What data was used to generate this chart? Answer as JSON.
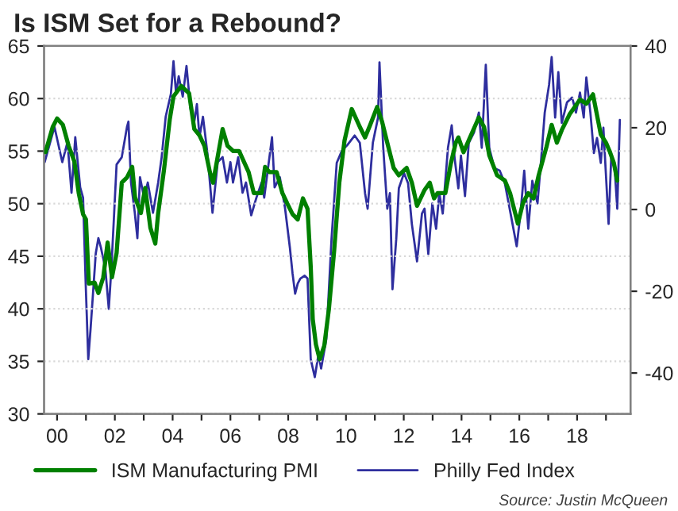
{
  "chart_data": {
    "type": "line",
    "title": "Is ISM Set for a Rebound?",
    "xlim": [
      1999.55,
      2019.85
    ],
    "xticks": [
      {
        "value": 2000,
        "label": "00"
      },
      {
        "value": 2001,
        "label": null
      },
      {
        "value": 2002,
        "label": "02"
      },
      {
        "value": 2003,
        "label": null
      },
      {
        "value": 2004,
        "label": "04"
      },
      {
        "value": 2005,
        "label": null
      },
      {
        "value": 2006,
        "label": "06"
      },
      {
        "value": 2007,
        "label": null
      },
      {
        "value": 2008,
        "label": "08"
      },
      {
        "value": 2009,
        "label": null
      },
      {
        "value": 2010,
        "label": "10"
      },
      {
        "value": 2011,
        "label": null
      },
      {
        "value": 2012,
        "label": "12"
      },
      {
        "value": 2013,
        "label": null
      },
      {
        "value": 2014,
        "label": "14"
      },
      {
        "value": 2015,
        "label": null
      },
      {
        "value": 2016,
        "label": "16"
      },
      {
        "value": 2017,
        "label": null
      },
      {
        "value": 2018,
        "label": "18"
      },
      {
        "value": 2019,
        "label": null
      }
    ],
    "ylim": [
      30,
      65
    ],
    "yticks": [
      30,
      35,
      40,
      45,
      50,
      55,
      60,
      65
    ],
    "y2lim": [
      -50,
      40
    ],
    "y2ticks": [
      -40,
      -20,
      0,
      20,
      40
    ],
    "grid": "y",
    "legend": "bottom",
    "annotations": [
      "Source: Justin McQueen"
    ],
    "series": [
      {
        "name": "ISM Manufacturing PMI",
        "color": "#008000",
        "x": [
          1999.6,
          1999.85,
          2000.0,
          2000.2,
          2000.4,
          2000.6,
          2000.75,
          2000.9,
          2001.0,
          2001.1,
          2001.3,
          2001.43,
          2001.6,
          2001.75,
          2001.9,
          2002.06,
          2002.24,
          2002.42,
          2002.6,
          2002.7,
          2002.9,
          2003.05,
          2003.23,
          2003.4,
          2003.5,
          2003.7,
          2003.9,
          2004.03,
          2004.3,
          2004.57,
          2004.75,
          2004.93,
          2005.1,
          2005.29,
          2005.4,
          2005.73,
          2005.9,
          2006.1,
          2006.3,
          2006.63,
          2006.81,
          2007.08,
          2007.2,
          2007.35,
          2007.6,
          2007.8,
          2007.97,
          2008.15,
          2008.33,
          2008.51,
          2008.67,
          2008.78,
          2008.85,
          2008.96,
          2009.09,
          2009.25,
          2009.41,
          2009.59,
          2009.77,
          2009.95,
          2010.2,
          2010.48,
          2010.66,
          2010.84,
          2011.08,
          2011.25,
          2011.43,
          2011.65,
          2011.83,
          2012.1,
          2012.28,
          2012.46,
          2012.72,
          2012.9,
          2013.05,
          2013.17,
          2013.44,
          2013.62,
          2013.8,
          2013.89,
          2014.07,
          2014.34,
          2014.6,
          2014.78,
          2014.96,
          2015.23,
          2015.5,
          2015.68,
          2015.95,
          2016.13,
          2016.31,
          2016.49,
          2016.67,
          2016.94,
          2017.12,
          2017.3,
          2017.47,
          2017.74,
          2017.92,
          2018.1,
          2018.32,
          2018.55,
          2018.67,
          2018.82,
          2019.0,
          2019.14,
          2019.27,
          2019.39
        ],
        "values": [
          54.9,
          57.3,
          58.1,
          57.5,
          55.5,
          54,
          51,
          49,
          48.5,
          42.4,
          42.5,
          41.5,
          43,
          46.3,
          43,
          45.3,
          52,
          52.5,
          53.5,
          50.6,
          49.1,
          51.5,
          47.7,
          46.2,
          49.1,
          53.2,
          58,
          60.2,
          61.2,
          60.5,
          57.1,
          56.5,
          55.5,
          53,
          52,
          57.1,
          55.5,
          55,
          55,
          53,
          51,
          51,
          53.5,
          53,
          53,
          51,
          50,
          49,
          48.5,
          50.5,
          49.5,
          44,
          39,
          36.6,
          35.2,
          36.5,
          40,
          45.5,
          52,
          56,
          59,
          57.3,
          56.3,
          57.5,
          59.2,
          57.8,
          55.8,
          53.4,
          52.7,
          53.4,
          52,
          49.8,
          51.3,
          52,
          50.5,
          51,
          51,
          53.7,
          55.8,
          56.3,
          54.9,
          56.6,
          58.2,
          57.3,
          54.6,
          52.7,
          52.2,
          51,
          48.1,
          50.1,
          51,
          50.5,
          52.7,
          55.4,
          57.5,
          55.8,
          57,
          58.5,
          59.2,
          59.9,
          59.5,
          60.4,
          58.7,
          56.6,
          55.8,
          54.9,
          53.9,
          52.2
        ]
      },
      {
        "name": "Philly Fed Index",
        "color": "#2e2e9e",
        "axis": "y2",
        "x": [
          1999.57,
          1999.91,
          2000.18,
          2000.36,
          2000.5,
          2000.63,
          2000.8,
          2000.9,
          2000.99,
          2001.08,
          2001.16,
          2001.34,
          2001.43,
          2001.52,
          2001.67,
          2001.79,
          2001.88,
          2002.06,
          2002.24,
          2002.42,
          2002.47,
          2002.56,
          2002.69,
          2002.78,
          2002.87,
          2003.01,
          2003.14,
          2003.32,
          2003.5,
          2003.62,
          2003.76,
          2003.94,
          2004.03,
          2004.12,
          2004.21,
          2004.35,
          2004.48,
          2004.62,
          2004.75,
          2004.84,
          2004.93,
          2005.05,
          2005.2,
          2005.38,
          2005.56,
          2005.73,
          2005.88,
          2006.0,
          2006.09,
          2006.27,
          2006.42,
          2006.54,
          2006.72,
          2006.9,
          2007.08,
          2007.17,
          2007.44,
          2007.53,
          2007.71,
          2007.89,
          2008.06,
          2008.15,
          2008.24,
          2008.33,
          2008.42,
          2008.57,
          2008.67,
          2008.78,
          2008.92,
          2009.05,
          2009.14,
          2009.32,
          2009.5,
          2009.68,
          2009.86,
          2010.04,
          2010.3,
          2010.48,
          2010.66,
          2010.75,
          2010.93,
          2011.11,
          2011.16,
          2011.29,
          2011.43,
          2011.52,
          2011.61,
          2011.74,
          2011.83,
          2012.01,
          2012.15,
          2012.28,
          2012.46,
          2012.63,
          2012.72,
          2012.85,
          2012.99,
          2013.12,
          2013.23,
          2013.35,
          2013.53,
          2013.66,
          2013.76,
          2013.89,
          2013.98,
          2014.12,
          2014.25,
          2014.43,
          2014.6,
          2014.7,
          2014.84,
          2014.96,
          2015.14,
          2015.32,
          2015.5,
          2015.73,
          2015.91,
          2016.04,
          2016.17,
          2016.31,
          2016.45,
          2016.63,
          2016.76,
          2016.88,
          2017.03,
          2017.12,
          2017.24,
          2017.35,
          2017.47,
          2017.65,
          2017.83,
          2017.96,
          2018.1,
          2018.23,
          2018.32,
          2018.46,
          2018.58,
          2018.69,
          2018.82,
          2018.91,
          2019.0,
          2019.09,
          2019.18,
          2019.3,
          2019.39,
          2019.48
        ],
        "values": [
          11.6,
          20.2,
          11.6,
          16.5,
          4.1,
          17.7,
          5.4,
          2.9,
          -18,
          -36.6,
          -29.2,
          -10.7,
          -7,
          -9.4,
          -14.4,
          -24.3,
          -14.4,
          11,
          12.8,
          20.2,
          21.5,
          6.6,
          -0.8,
          -7,
          7.9,
          2.9,
          6.6,
          -0.8,
          6.6,
          12.8,
          22.7,
          28.3,
          36.3,
          28.3,
          32.6,
          27.6,
          35.1,
          24.6,
          21.5,
          25.8,
          17.7,
          22.7,
          14,
          -0.8,
          11.6,
          12.8,
          6.6,
          11.6,
          6.6,
          12.8,
          4.1,
          6.6,
          -1.4,
          2.9,
          6.6,
          2.9,
          17.7,
          5.4,
          7.9,
          0.4,
          -9.4,
          -15.6,
          -20.6,
          -18.1,
          -16.9,
          -16.2,
          -16.9,
          -36.6,
          -41,
          -35.4,
          -38.9,
          -31.7,
          -7.2,
          11.4,
          14.4,
          15.7,
          18.1,
          16.3,
          4,
          0.2,
          16.3,
          22.5,
          36,
          15.1,
          0.2,
          4,
          -19.5,
          -7.2,
          5.2,
          8.9,
          6.4,
          -3.5,
          -12.7,
          -1,
          0.2,
          -10.9,
          1.5,
          -4.7,
          4,
          -1,
          15.1,
          20.6,
          12.6,
          5.2,
          13.2,
          3.3,
          16.3,
          18.8,
          23.7,
          15.1,
          35.4,
          15.1,
          10.1,
          9.5,
          6.4,
          -2.2,
          -9,
          -1,
          9.5,
          -4.7,
          7,
          1.5,
          12.6,
          23.7,
          30.5,
          37.3,
          22.5,
          33.6,
          21.2,
          26.2,
          27.4,
          23.7,
          28.6,
          22.5,
          32.3,
          23.7,
          13.8,
          17.5,
          11.4,
          20,
          8.3,
          -3.5,
          12.6,
          10.1,
          0.2,
          21.9
        ]
      }
    ]
  }
}
